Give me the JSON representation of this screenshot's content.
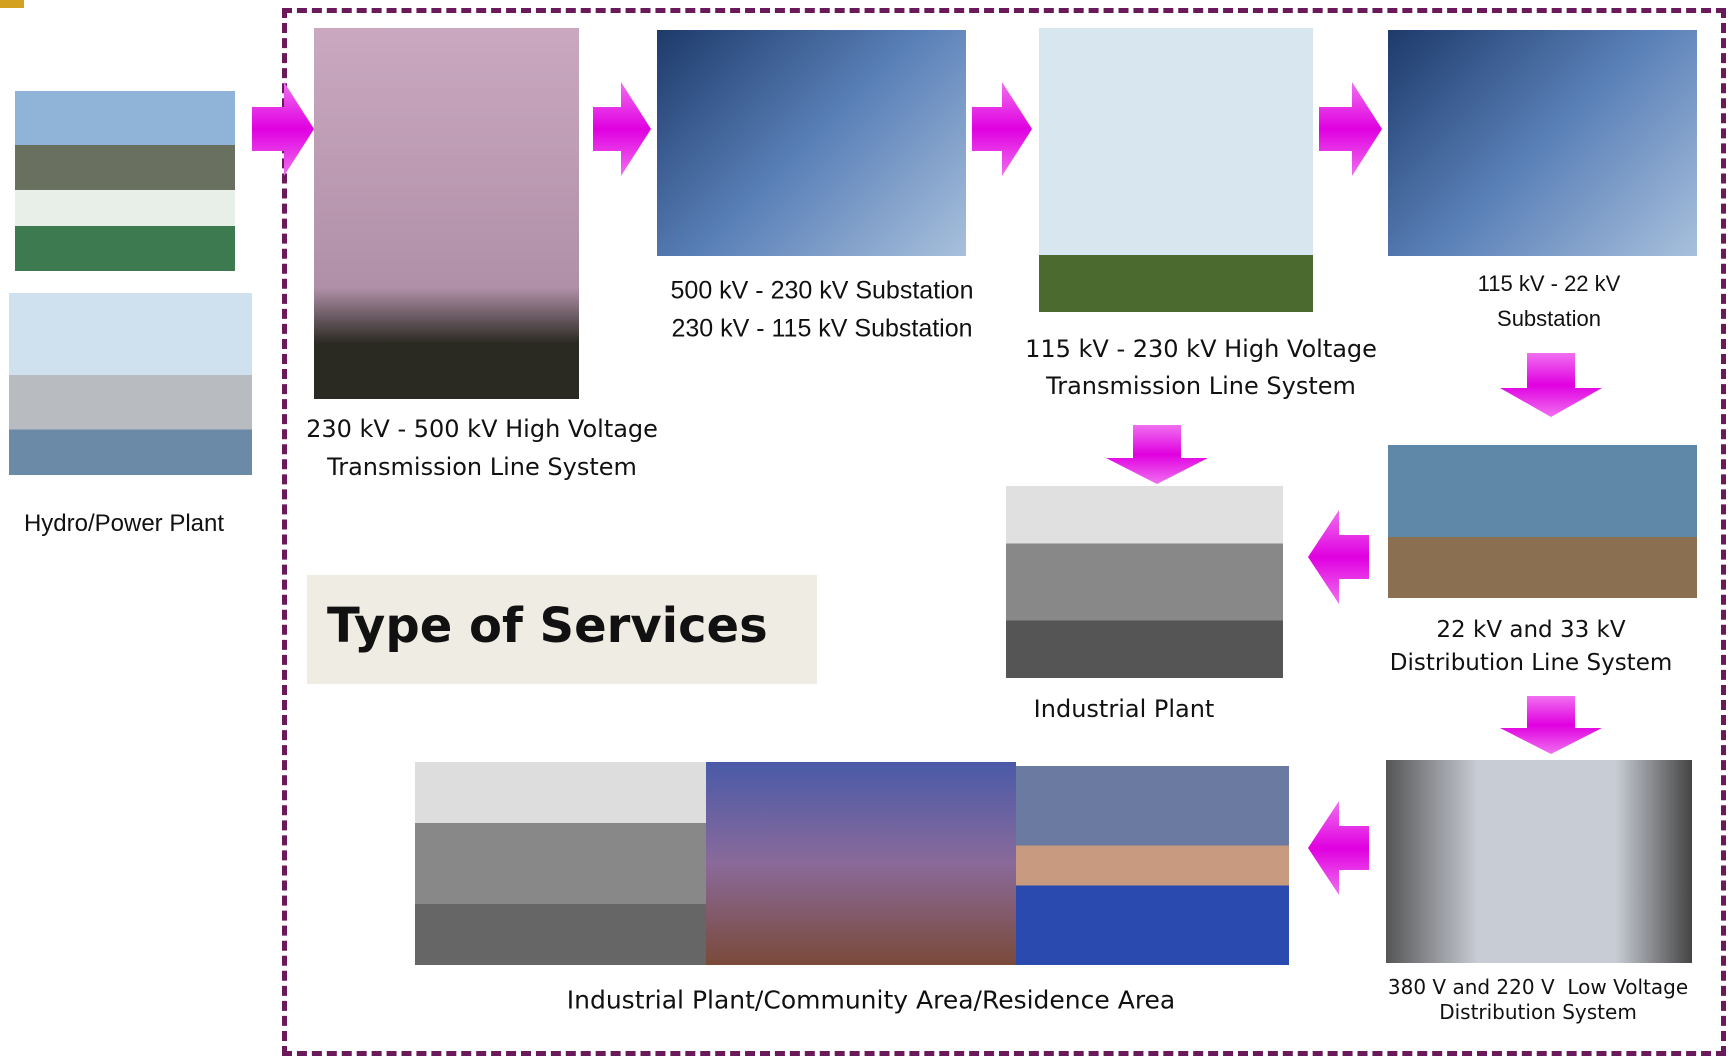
{
  "nodes": [
    {
      "label": [
        "Hydro/Power Plant"
      ]
    },
    {
      "label": [
        "230 kV - 500 kV High Voltage",
        "Transmission Line System"
      ]
    },
    {
      "label": [
        "500 kV - 230 kV Substation",
        "230 kV - 115 kV Substation"
      ]
    },
    {
      "label": [
        "115 kV - 230 kV High Voltage",
        "Transmission Line System"
      ]
    },
    {
      "label": [
        "115 kV - 22 kV",
        "Substation"
      ]
    },
    {
      "label": [
        "22 kV and 33 kV",
        "Distribution Line System"
      ]
    },
    {
      "label": [
        "Industrial Plant"
      ]
    },
    {
      "label": [
        "380 V and 220 V  Low Voltage",
        "Distribution System"
      ]
    },
    {
      "label": [
        "Industrial Plant/Community Area/Residence Area"
      ]
    }
  ],
  "title": "Type of Services"
}
